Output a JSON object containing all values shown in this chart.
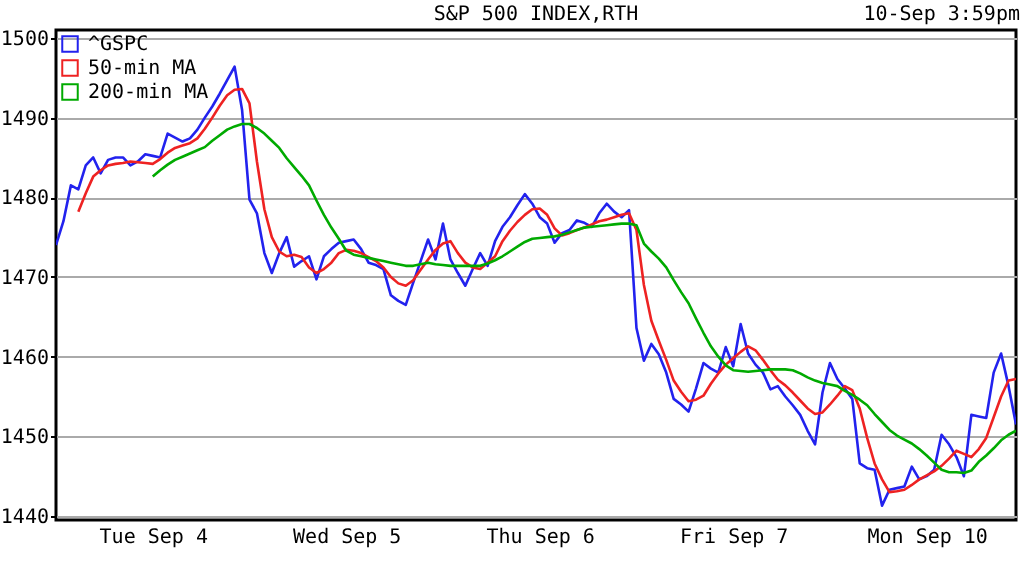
{
  "chart_data": {
    "type": "line",
    "title": "S&P 500 INDEX,RTH",
    "annotations": [
      "10-Sep 3:59pm"
    ],
    "categories": [
      null,
      null,
      null,
      null,
      null,
      null,
      null,
      null,
      null,
      null,
      null,
      null,
      null,
      "Tue Sep 4",
      null,
      null,
      null,
      null,
      null,
      null,
      null,
      null,
      null,
      null,
      null,
      null,
      null,
      null,
      null,
      null,
      null,
      null,
      null,
      null,
      null,
      null,
      null,
      null,
      null,
      "Wed Sep 5",
      null,
      null,
      null,
      null,
      null,
      null,
      null,
      null,
      null,
      null,
      null,
      null,
      null,
      null,
      null,
      null,
      null,
      null,
      null,
      null,
      null,
      null,
      null,
      null,
      null,
      "Thu Sep 6",
      null,
      null,
      null,
      null,
      null,
      null,
      null,
      null,
      null,
      null,
      null,
      null,
      null,
      null,
      null,
      null,
      null,
      null,
      null,
      null,
      null,
      null,
      null,
      null,
      null,
      "Fri Sep 7",
      null,
      null,
      null,
      null,
      null,
      null,
      null,
      null,
      null,
      null,
      null,
      null,
      null,
      null,
      null,
      null,
      null,
      null,
      null,
      null,
      null,
      null,
      null,
      null,
      null,
      "Mon Sep 10",
      null,
      null,
      null,
      null,
      null,
      null,
      null,
      null,
      null,
      null,
      null,
      null
    ],
    "ylim": [
      1439.5,
      1501
    ],
    "yticks": [
      1440,
      1450,
      1460,
      1470,
      1480,
      1490,
      1500
    ],
    "grid": "y",
    "legend": "top left",
    "marker": "none",
    "line_style": "solid",
    "series": [
      {
        "name": "^GSPC",
        "color": "#2222ee",
        "values": [
          1474,
          1477,
          1481.5,
          1481,
          1484,
          1485,
          1483,
          1484.7,
          1485,
          1485,
          1484,
          1484.5,
          1485.4,
          1485.2,
          1485,
          1488,
          1487.5,
          1487,
          1487.4,
          1488.5,
          1490,
          1491.4,
          1493,
          1494.7,
          1496.4,
          1491,
          1479.7,
          1478,
          1473,
          1470.5,
          1473,
          1475,
          1471.3,
          1472,
          1472.6,
          1469.7,
          1472.6,
          1473.5,
          1474.3,
          1474.5,
          1474.7,
          1473.5,
          1471.8,
          1471.5,
          1471,
          1467.7,
          1467,
          1466.5,
          1469.3,
          1472,
          1474.7,
          1472.2,
          1476.7,
          1472.2,
          1470.5,
          1468.9,
          1471,
          1473,
          1471.4,
          1474.5,
          1476.3,
          1477.5,
          1479,
          1480.4,
          1479.2,
          1477.5,
          1476.7,
          1474.3,
          1475.5,
          1475.9,
          1477.1,
          1476.8,
          1476.3,
          1478,
          1479.2,
          1478.2,
          1477.5,
          1478.4,
          1463.6,
          1459.5,
          1461.6,
          1460.3,
          1458,
          1454.7,
          1454,
          1453.1,
          1456,
          1459.2,
          1458.5,
          1458,
          1461.2,
          1458.8,
          1464.1,
          1460.4,
          1459,
          1458,
          1455.9,
          1456.3,
          1455,
          1453.9,
          1452.7,
          1450.7,
          1449,
          1455.5,
          1459.2,
          1457.2,
          1456,
          1454.7,
          1446.6,
          1446,
          1445.8,
          1441.3,
          1443.3,
          1443.5,
          1443.7,
          1446.2,
          1444.6,
          1445,
          1445.8,
          1450.2,
          1449,
          1447.4,
          1445,
          1452.7,
          1452.5,
          1452.3,
          1458,
          1460.4,
          1456.3,
          1451.5
        ]
      },
      {
        "name": "50-min MA",
        "color": "#ee2222",
        "values": [
          null,
          null,
          null,
          1478.2,
          1480.5,
          1482.6,
          1483.4,
          1484,
          1484.2,
          1484.3,
          1484.5,
          1484.4,
          1484.3,
          1484.2,
          1484.8,
          1485.6,
          1486.2,
          1486.5,
          1486.8,
          1487.4,
          1488.6,
          1490,
          1491.5,
          1492.8,
          1493.5,
          1493.6,
          1491.8,
          1484.5,
          1478.5,
          1475,
          1473.2,
          1472.6,
          1472.8,
          1472.5,
          1471.2,
          1470.5,
          1471,
          1471.8,
          1473,
          1473.4,
          1473.3,
          1473,
          1472.5,
          1472,
          1471.2,
          1470,
          1469.2,
          1468.9,
          1469.6,
          1470.9,
          1472.2,
          1473.4,
          1474.2,
          1474.5,
          1473,
          1471.8,
          1471.2,
          1471,
          1471.8,
          1472.6,
          1474.5,
          1475.8,
          1476.9,
          1477.8,
          1478.5,
          1478.6,
          1477.8,
          1476.1,
          1475.2,
          1475.5,
          1475.9,
          1476.2,
          1476.6,
          1477,
          1477.2,
          1477.5,
          1477.8,
          1478,
          1475.9,
          1469,
          1464.5,
          1462,
          1459.6,
          1457,
          1455.6,
          1454.4,
          1454.6,
          1455.1,
          1456.6,
          1457.9,
          1459,
          1459.8,
          1460.6,
          1461.3,
          1460.8,
          1459.6,
          1458.3,
          1457.1,
          1456.4,
          1455.5,
          1454.5,
          1453.5,
          1452.8,
          1453,
          1454,
          1455.1,
          1456.3,
          1455.8,
          1453.5,
          1449.8,
          1446.6,
          1444.6,
          1443,
          1443.1,
          1443.3,
          1443.9,
          1444.6,
          1445.1,
          1445.6,
          1446.3,
          1447.2,
          1448.2,
          1447.8,
          1447.4,
          1448.4,
          1449.8,
          1452.4,
          1455,
          1457,
          1457.2
        ]
      },
      {
        "name": "200-min MA",
        "color": "#00aa00",
        "values": [
          null,
          null,
          null,
          null,
          null,
          null,
          null,
          null,
          null,
          null,
          null,
          null,
          null,
          1482.6,
          1483.4,
          1484.1,
          1484.7,
          1485.1,
          1485.5,
          1485.9,
          1486.3,
          1487.1,
          1487.8,
          1488.5,
          1488.9,
          1489.2,
          1489.2,
          1488.7,
          1488,
          1487.1,
          1486.2,
          1484.9,
          1483.8,
          1482.7,
          1481.5,
          1479.6,
          1477.8,
          1476.2,
          1474.8,
          1473.3,
          1472.8,
          1472.6,
          1472.4,
          1472.2,
          1472,
          1471.8,
          1471.6,
          1471.4,
          1471.4,
          1471.6,
          1471.8,
          1471.6,
          1471.5,
          1471.4,
          1471.4,
          1471.4,
          1471.4,
          1471.4,
          1471.7,
          1472.1,
          1472.6,
          1473.2,
          1473.8,
          1474.4,
          1474.8,
          1474.9,
          1475,
          1475.1,
          1475.3,
          1475.6,
          1475.9,
          1476.2,
          1476.3,
          1476.4,
          1476.5,
          1476.6,
          1476.7,
          1476.7,
          1476.5,
          1474.2,
          1473.2,
          1472.3,
          1471.2,
          1469.6,
          1468.1,
          1466.7,
          1464.8,
          1463,
          1461.3,
          1460,
          1458.9,
          1458.3,
          1458.2,
          1458.1,
          1458.2,
          1458.3,
          1458.4,
          1458.4,
          1458.4,
          1458.3,
          1457.9,
          1457.4,
          1457,
          1456.7,
          1456.5,
          1456.3,
          1455.7,
          1455.2,
          1454.6,
          1453.9,
          1452.8,
          1451.8,
          1450.8,
          1450.1,
          1449.6,
          1449.1,
          1448.4,
          1447.6,
          1446.7,
          1445.8,
          1445.5,
          1445.5,
          1445.4,
          1445.7,
          1446.8,
          1447.6,
          1448.5,
          1449.5,
          1450.2,
          1450.7
        ]
      }
    ]
  }
}
